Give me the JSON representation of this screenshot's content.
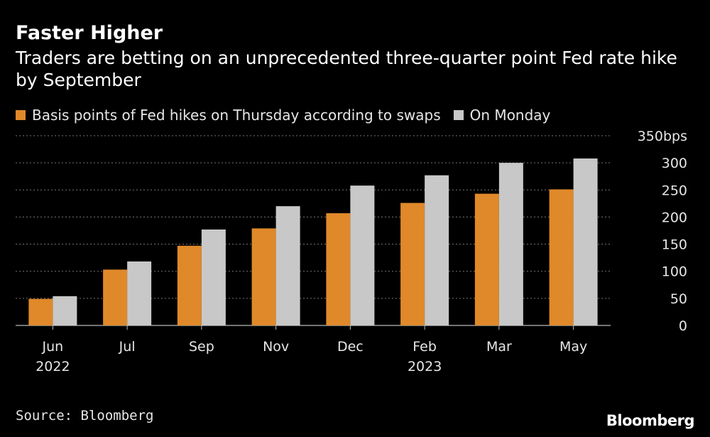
{
  "title": "Faster Higher",
  "subtitle": "Traders are betting on an unprecedented three-quarter point Fed rate hike by September",
  "source": "Source: Bloomberg",
  "logo": "Bloomberg",
  "colors": {
    "thursday": "#E0892A",
    "monday": "#C8C8C8",
    "background": "#000000",
    "grid": "#777777",
    "text": "#e6e6e6"
  },
  "legend": [
    {
      "label": "Basis points of Fed hikes on Thursday according to swaps",
      "color": "#E0892A"
    },
    {
      "label": "On Monday",
      "color": "#C8C8C8"
    }
  ],
  "chart_data": {
    "type": "bar",
    "categories": [
      "Jun",
      "Jul",
      "Sep",
      "Nov",
      "Dec",
      "Feb",
      "Mar",
      "May"
    ],
    "category_sublabels": [
      "2022",
      "",
      "",
      "",
      "",
      "2023",
      "",
      ""
    ],
    "series": [
      {
        "name": "Basis points of Fed hikes on Thursday according to swaps",
        "values": [
          49,
          103,
          147,
          179,
          207,
          226,
          243,
          251
        ]
      },
      {
        "name": "On Monday",
        "values": [
          54,
          118,
          177,
          220,
          258,
          277,
          300,
          308
        ]
      }
    ],
    "ylim": [
      0,
      350
    ],
    "yticks": [
      0,
      50,
      100,
      150,
      200,
      250,
      300,
      350
    ],
    "ytick_labels": [
      "0",
      "50",
      "100",
      "150",
      "200",
      "250",
      "300",
      "350bps"
    ],
    "grid": true,
    "ylabel": "",
    "xlabel": ""
  }
}
